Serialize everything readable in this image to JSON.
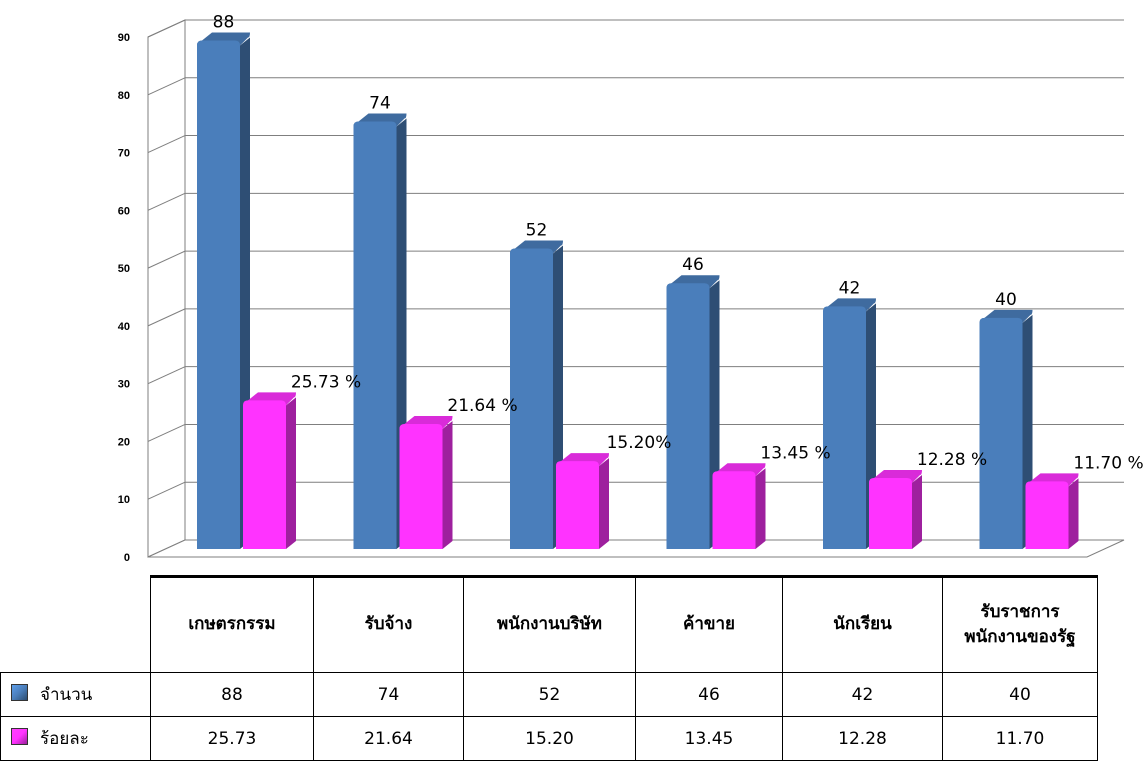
{
  "chart_data": {
    "type": "bar",
    "categories": [
      "เกษตรกรรม",
      "รับจ้าง",
      "พนักงานบริษัท",
      "ค้าขาย",
      "นักเรียน",
      "รับราชการ\nพนักงานของรัฐ"
    ],
    "category_header_lines": [
      [
        "เกษตรกรรม"
      ],
      [
        "รับจ้าง"
      ],
      [
        "พนักงานบริษัท"
      ],
      [
        "ค้าขาย"
      ],
      [
        "นักเรียน"
      ],
      [
        "รับราชการ",
        "พนักงานของรัฐ"
      ]
    ],
    "series": [
      {
        "name": "จำนวน",
        "color": "#4a7ebb",
        "values": [
          88,
          74,
          52,
          46,
          42,
          40
        ],
        "data_labels": [
          "88",
          "74",
          "52",
          "46",
          "42",
          "40"
        ],
        "table_values": [
          "88",
          "74",
          "52",
          "46",
          "42",
          "40"
        ]
      },
      {
        "name": "ร้อยละ",
        "color": "#ff33ff",
        "values": [
          25.73,
          21.64,
          15.2,
          13.45,
          12.28,
          11.7
        ],
        "data_labels": [
          "25.73 %",
          "21.64 %",
          "15.20%",
          "13.45 %",
          "12.28 %",
          "11.70 %"
        ],
        "table_values": [
          "25.73",
          "21.64",
          "15.20",
          "13.45",
          "12.28",
          "11.70"
        ]
      }
    ],
    "yticks": [
      "0",
      "10",
      "20",
      "30",
      "40",
      "50",
      "60",
      "70",
      "80",
      "90"
    ],
    "ylim": [
      0,
      90
    ],
    "grid": true,
    "legend": "data-table"
  }
}
